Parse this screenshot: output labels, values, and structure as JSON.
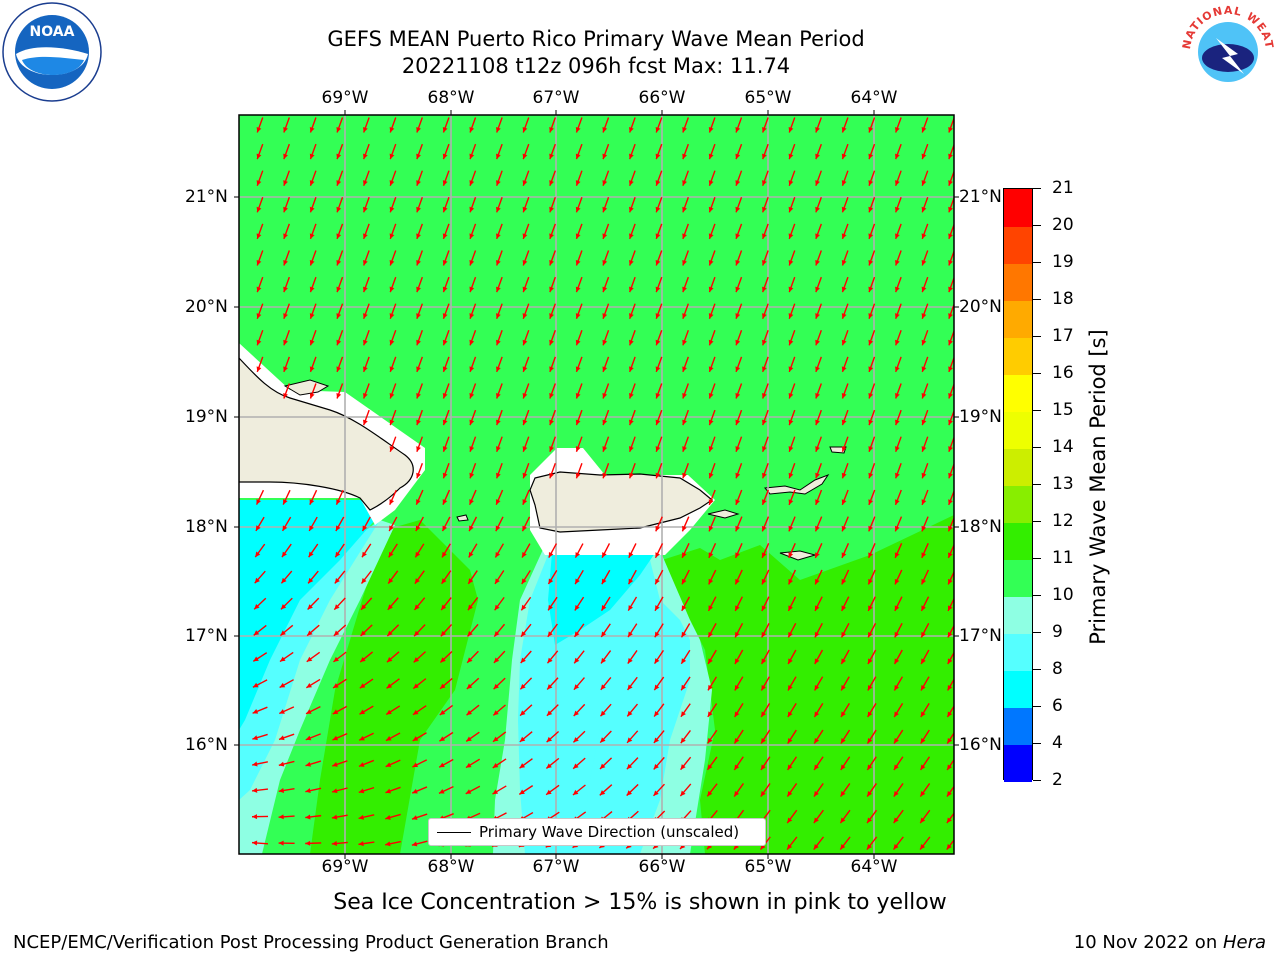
{
  "header": {
    "title_line1": "GEFS MEAN Puerto Rico Primary Wave Mean Period",
    "title_line2": "20221108 t12z 096h fcst   Max: 11.74"
  },
  "map": {
    "lon_labels": [
      "69°W",
      "68°W",
      "67°W",
      "66°W",
      "65°W",
      "64°W"
    ],
    "lat_labels": [
      "21°N",
      "20°N",
      "19°N",
      "18°N",
      "17°N",
      "16°N"
    ],
    "grid_lines": true,
    "ocean_colors": {
      "period_6_8": "#00ffff",
      "period_8_9": "#55ffff",
      "period_9_10": "#8effe3",
      "period_10_11": "#33ff55",
      "period_11_12": "#33ee00",
      "land": "#efeddd",
      "arrow": "#ff0000"
    }
  },
  "legend": {
    "label": "Primary Wave Direction (unscaled)"
  },
  "colorbar": {
    "title": "Primary Wave Mean Period [s]",
    "ticks": [
      "2",
      "4",
      "6",
      "8",
      "9",
      "10",
      "11",
      "12",
      "13",
      "14",
      "15",
      "16",
      "17",
      "18",
      "19",
      "20",
      "21"
    ],
    "colors": [
      "#0000ff",
      "#0077ff",
      "#00ffff",
      "#55ffff",
      "#8effe3",
      "#33ff55",
      "#33ee00",
      "#88ee00",
      "#ccee00",
      "#eeff00",
      "#ffff00",
      "#ffcc00",
      "#ffaa00",
      "#ff7700",
      "#ff4400",
      "#ff0000"
    ]
  },
  "notes": {
    "sea_ice": "Sea Ice Concentration > 15% is shown in pink to yellow"
  },
  "footer": {
    "left": "NCEP/EMC/Verification Post Processing Product Generation Branch",
    "right_prefix": "10 Nov 2022 on ",
    "right_machine": "Hera"
  },
  "logos": {
    "left": "NOAA",
    "right_ring": "NATIONAL WEATHER SERVICE"
  }
}
